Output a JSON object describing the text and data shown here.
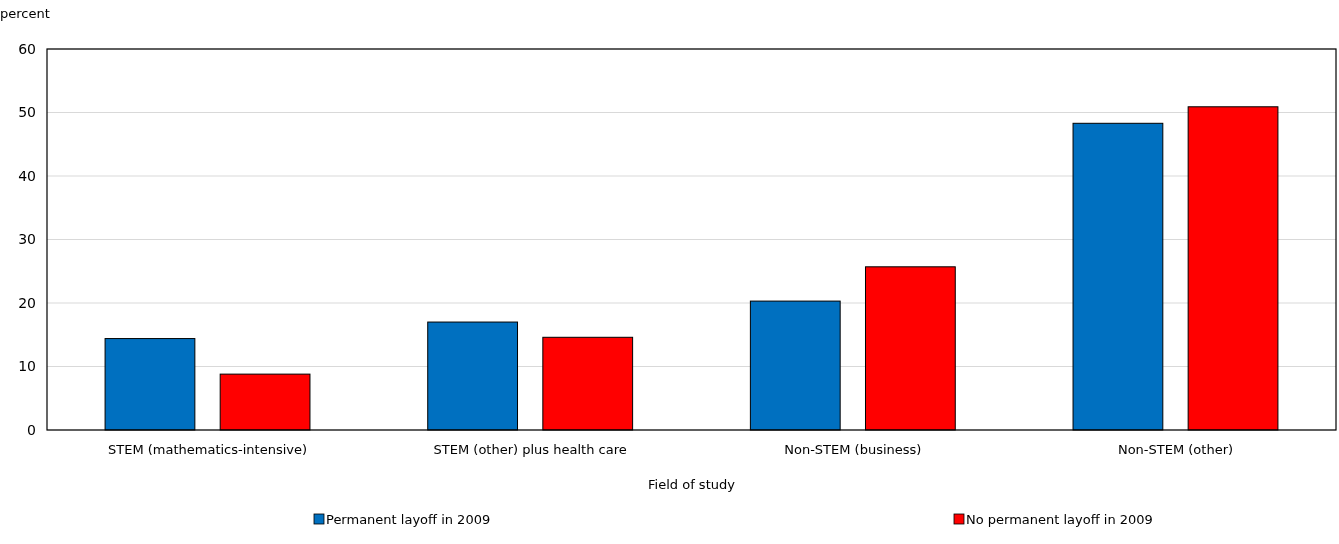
{
  "chart_data": {
    "type": "bar",
    "ylabel": "percent",
    "xlabel": "Field of study",
    "categories": [
      "STEM (mathematics-intensive)",
      "STEM (other) plus health care",
      "Non-STEM (business)",
      "Non-STEM (other)"
    ],
    "series": [
      {
        "name": "Permanent layoff in 2009",
        "color": "#0070c0",
        "values": [
          14.4,
          17.0,
          20.3,
          48.3
        ]
      },
      {
        "name": "No permanent layoff in 2009",
        "color": "#ff0000",
        "values": [
          8.8,
          14.6,
          25.7,
          50.9
        ]
      }
    ],
    "ylim": [
      0,
      60
    ],
    "yticks": [
      0,
      10,
      20,
      30,
      40,
      50,
      60
    ],
    "grid": "y",
    "legend": "bottom"
  }
}
